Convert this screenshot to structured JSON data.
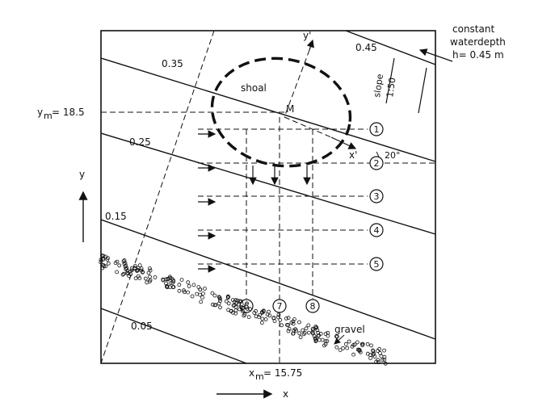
{
  "annotation": {
    "line1": "constant",
    "line2": "waterdepth",
    "line3": "h= 0.45 m"
  },
  "contours": [
    "0.45",
    "0.35",
    "0.25",
    "0.15",
    "0.05"
  ],
  "shoal_label": "shoal",
  "center_label": "M",
  "slope_label": "slope",
  "slope_ratio": "1:50",
  "angle_label": "20°",
  "axis_y_prime": "y'",
  "axis_x_prime": "x'",
  "ym_label": "y",
  "ym_sub": "m",
  "ym_value": "= 18.5",
  "xm_label": "x",
  "xm_sub": "m",
  "xm_value": "= 15.75",
  "axis_x": "x",
  "axis_y": "y",
  "gravel_label": "gravel",
  "sections": [
    "1",
    "2",
    "3",
    "4",
    "5",
    "6",
    "7",
    "8"
  ]
}
